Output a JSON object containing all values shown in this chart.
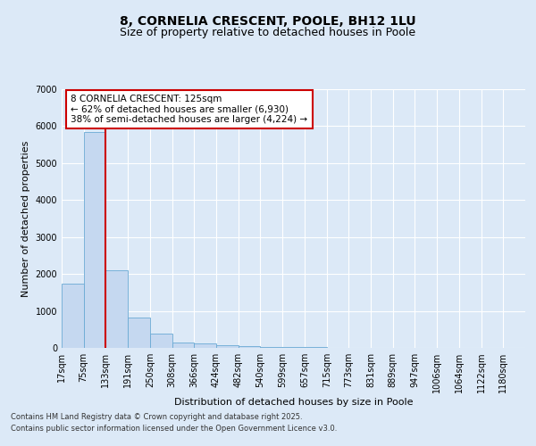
{
  "title": "8, CORNELIA CRESCENT, POOLE, BH12 1LU",
  "subtitle": "Size of property relative to detached houses in Poole",
  "xlabel": "Distribution of detached houses by size in Poole",
  "ylabel": "Number of detached properties",
  "bin_labels": [
    "17sqm",
    "75sqm",
    "133sqm",
    "191sqm",
    "250sqm",
    "308sqm",
    "366sqm",
    "424sqm",
    "482sqm",
    "540sqm",
    "599sqm",
    "657sqm",
    "715sqm",
    "773sqm",
    "831sqm",
    "889sqm",
    "947sqm",
    "1006sqm",
    "1064sqm",
    "1122sqm",
    "1180sqm"
  ],
  "bin_edges": [
    17,
    75,
    133,
    191,
    250,
    308,
    366,
    424,
    482,
    540,
    599,
    657,
    715,
    773,
    831,
    889,
    947,
    1006,
    1064,
    1122,
    1180
  ],
  "bar_heights": [
    1750,
    5850,
    2100,
    820,
    380,
    150,
    110,
    80,
    50,
    30,
    20,
    15,
    10,
    0,
    0,
    0,
    0,
    0,
    0,
    0
  ],
  "bar_color": "#c5d8f0",
  "bar_edge_color": "#6aaad4",
  "bg_color": "#dce9f7",
  "grid_color": "#ffffff",
  "vline_x": 133,
  "vline_color": "#cc0000",
  "annotation_text": "8 CORNELIA CRESCENT: 125sqm\n← 62% of detached houses are smaller (6,930)\n38% of semi-detached houses are larger (4,224) →",
  "annotation_box_color": "#cc0000",
  "footer_line1": "Contains HM Land Registry data © Crown copyright and database right 2025.",
  "footer_line2": "Contains public sector information licensed under the Open Government Licence v3.0.",
  "ylim": [
    0,
    7000
  ],
  "title_fontsize": 10,
  "subtitle_fontsize": 9,
  "axis_label_fontsize": 8,
  "tick_fontsize": 7,
  "annotation_fontsize": 7.5
}
